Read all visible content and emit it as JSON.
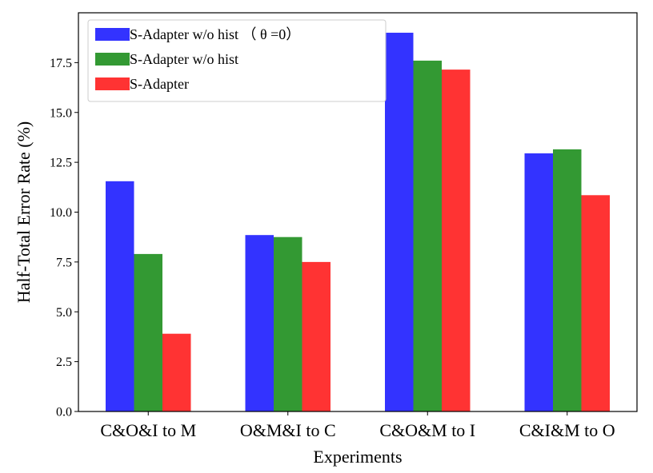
{
  "chart_data": {
    "type": "bar",
    "title": "",
    "xlabel": "Experiments",
    "ylabel": "Half-Total Error Rate (%)",
    "ylim": [
      0,
      20
    ],
    "yticks": [
      "0.0",
      "2.5",
      "5.0",
      "7.5",
      "10.0",
      "12.5",
      "15.0",
      "17.5"
    ],
    "ytick_values": [
      0,
      2.5,
      5,
      7.5,
      10,
      12.5,
      15,
      17.5
    ],
    "grid": false,
    "legend_position": "top-left",
    "categories": [
      "C&O&I to M",
      "O&M&I to C",
      "C&O&M to I",
      "C&I&M to O"
    ],
    "series": [
      {
        "name": "S-Adapter w/o hist （ θ =0）",
        "color": "#3333ff",
        "values": [
          11.55,
          8.85,
          19.0,
          12.95
        ]
      },
      {
        "name": "S-Adapter w/o hist",
        "color": "#339933",
        "values": [
          7.9,
          8.75,
          17.6,
          13.15
        ]
      },
      {
        "name": "S-Adapter",
        "color": "#ff3333",
        "values": [
          3.9,
          7.5,
          17.15,
          10.85
        ]
      }
    ]
  }
}
